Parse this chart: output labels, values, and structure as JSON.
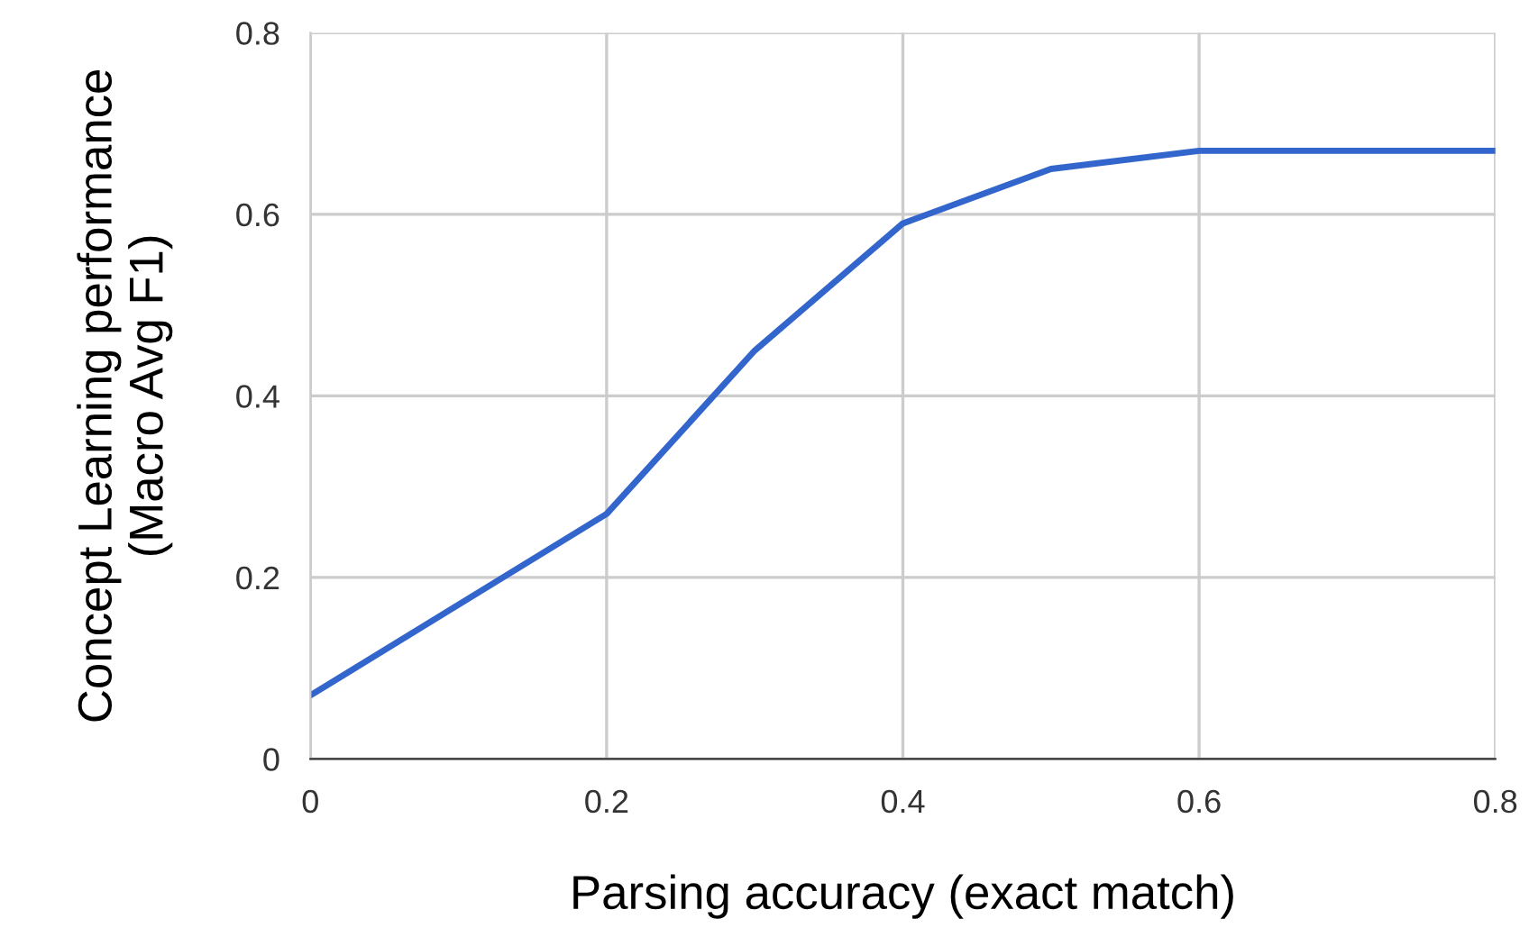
{
  "chart_data": {
    "type": "line",
    "xlabel": "Parsing accuracy (exact match)",
    "ylabel": "Concept Learning performance\n(Macro Avg F1)",
    "series": [
      {
        "color": "#3366cc",
        "x": [
          0,
          0.2,
          0.3,
          0.4,
          0.5,
          0.6,
          0.8
        ],
        "values": [
          0.07,
          0.27,
          0.45,
          0.59,
          0.65,
          0.67,
          0.67
        ]
      }
    ],
    "xlim": [
      0,
      0.8
    ],
    "xticks": [
      0,
      0.2,
      0.4,
      0.6,
      0.8
    ],
    "ylim": [
      0,
      0.8
    ],
    "yticks": [
      0,
      0.2,
      0.4,
      0.6,
      0.8
    ],
    "grid": true
  }
}
